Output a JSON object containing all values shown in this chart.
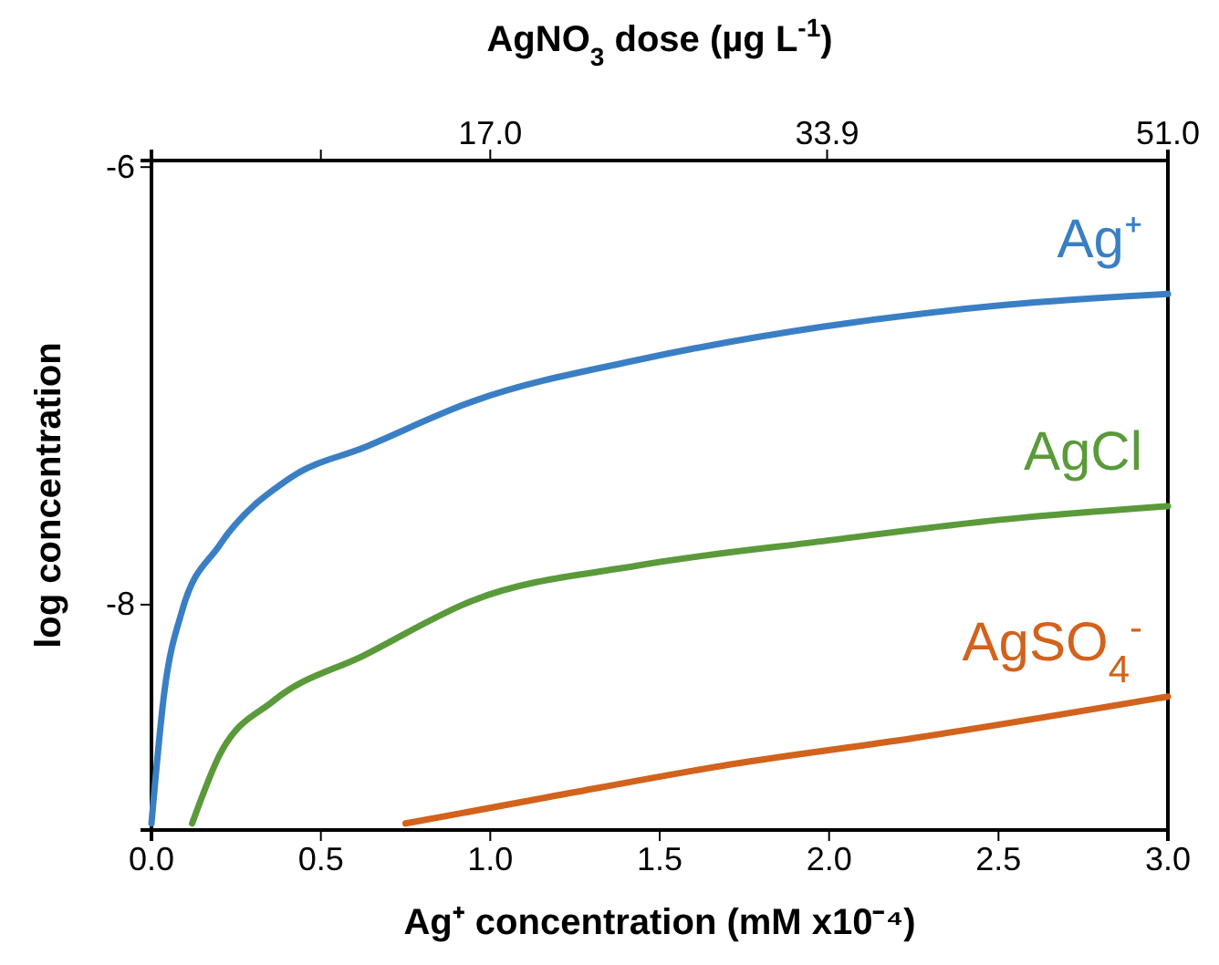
{
  "chart_data": {
    "type": "line",
    "xlabel": "Ag⁺ concentration (mM x10⁻⁴)",
    "ylabel": "log concentration",
    "x2label": "AgNO$_{3}$ dose (µg L$^{-1}$)",
    "xlim": [
      0,
      3
    ],
    "xticks": [
      {
        "value": 0,
        "label": "0.0"
      },
      {
        "value": 0.5,
        "label": "0.5"
      },
      {
        "value": 1,
        "label": "1.0"
      },
      {
        "value": 1.5,
        "label": "1.5"
      },
      {
        "value": 2,
        "label": "2.0"
      },
      {
        "value": 2.5,
        "label": "2.5"
      },
      {
        "value": 3,
        "label": "3.0"
      }
    ],
    "x2lim": [
      0,
      51
    ],
    "x2ticks": [
      {
        "value": 8.5,
        "label": null
      },
      {
        "value": 17,
        "label": "17.0"
      },
      {
        "value": 33.9,
        "label": "33.9"
      },
      {
        "value": 51,
        "label": "51.0"
      }
    ],
    "ylim": [
      -9.03,
      -5.97
    ],
    "yticks": [
      -6,
      -8
    ],
    "grid": false,
    "legend": false,
    "line_style": "solid",
    "marker": "none",
    "series": [
      {
        "name": "Ag⁺",
        "color": "#3a7fc4",
        "x": [
          0,
          0.038,
          0.09,
          0.2,
          0.41,
          0.63,
          0.95,
          1.44,
          1.98,
          2.52,
          3.0
        ],
        "values": [
          -9.0,
          -8.4,
          -8.03,
          -7.73,
          -7.42,
          -7.28,
          -7.07,
          -6.88,
          -6.73,
          -6.63,
          -6.58
        ]
      },
      {
        "name": "AgCl",
        "color": "#5a9a3a",
        "x": [
          0.12,
          0.2,
          0.36,
          0.63,
          0.95,
          1.44,
          1.98,
          2.52,
          3.0
        ],
        "values": [
          -9.0,
          -8.69,
          -8.44,
          -8.23,
          -7.98,
          -7.82,
          -7.71,
          -7.61,
          -7.55
        ]
      },
      {
        "name": "AgSO$_{4}$$^{-}$",
        "color": "#d2621c",
        "x": [
          0.75,
          1.17,
          1.71,
          2.25,
          3.0
        ],
        "values": [
          -9.0,
          -8.88,
          -8.73,
          -8.61,
          -8.42
        ]
      }
    ]
  }
}
